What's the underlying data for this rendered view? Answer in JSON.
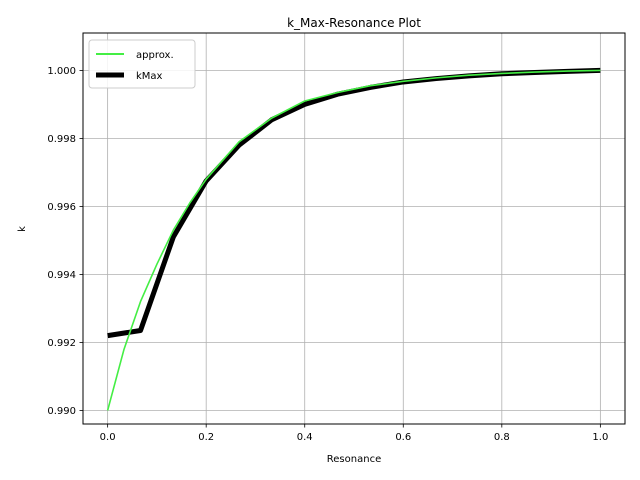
{
  "chart_data": {
    "type": "line",
    "title": "k_Max-Resonance Plot",
    "xlabel": "Resonance",
    "ylabel": "k",
    "xlim": [
      -0.05,
      1.05
    ],
    "ylim": [
      0.9896,
      1.0011
    ],
    "xticks": [
      0.0,
      0.2,
      0.4,
      0.6,
      0.8,
      1.0
    ],
    "xtick_labels": [
      "0.0",
      "0.2",
      "0.4",
      "0.6",
      "0.8",
      "1.0"
    ],
    "yticks": [
      0.99,
      0.992,
      0.994,
      0.996,
      0.998,
      1.0
    ],
    "ytick_labels": [
      "0.990",
      "0.992",
      "0.994",
      "0.996",
      "0.998",
      "1.000"
    ],
    "grid": true,
    "legend_position": "upper-left",
    "series": [
      {
        "name": "approx.",
        "color": "#44ee44",
        "x": [
          0.0,
          0.0333,
          0.0667,
          0.1,
          0.1333,
          0.1667,
          0.2,
          0.2667,
          0.3333,
          0.4,
          0.4667,
          0.5333,
          0.6,
          0.6667,
          0.7333,
          0.8,
          0.8667,
          0.9333,
          1.0
        ],
        "y": [
          0.99,
          0.9918,
          0.9932,
          0.9943,
          0.9953,
          0.9961,
          0.9968,
          0.9979,
          0.9986,
          0.9991,
          0.99935,
          0.99955,
          0.99968,
          0.99978,
          0.99986,
          0.99991,
          0.99995,
          0.99998,
          1.0
        ]
      },
      {
        "name": "kMax",
        "color": "#000000",
        "x": [
          0.0,
          0.0667,
          0.1333,
          0.2,
          0.2667,
          0.3333,
          0.4,
          0.4667,
          0.5333,
          0.6,
          0.6667,
          0.7333,
          0.8,
          0.8667,
          0.9333,
          1.0
        ],
        "y": [
          0.9922,
          0.99235,
          0.9951,
          0.99675,
          0.9978,
          0.99855,
          0.999,
          0.9993,
          0.9995,
          0.99966,
          0.99976,
          0.99984,
          0.9999,
          0.99994,
          0.99997,
          1.0
        ]
      }
    ]
  }
}
